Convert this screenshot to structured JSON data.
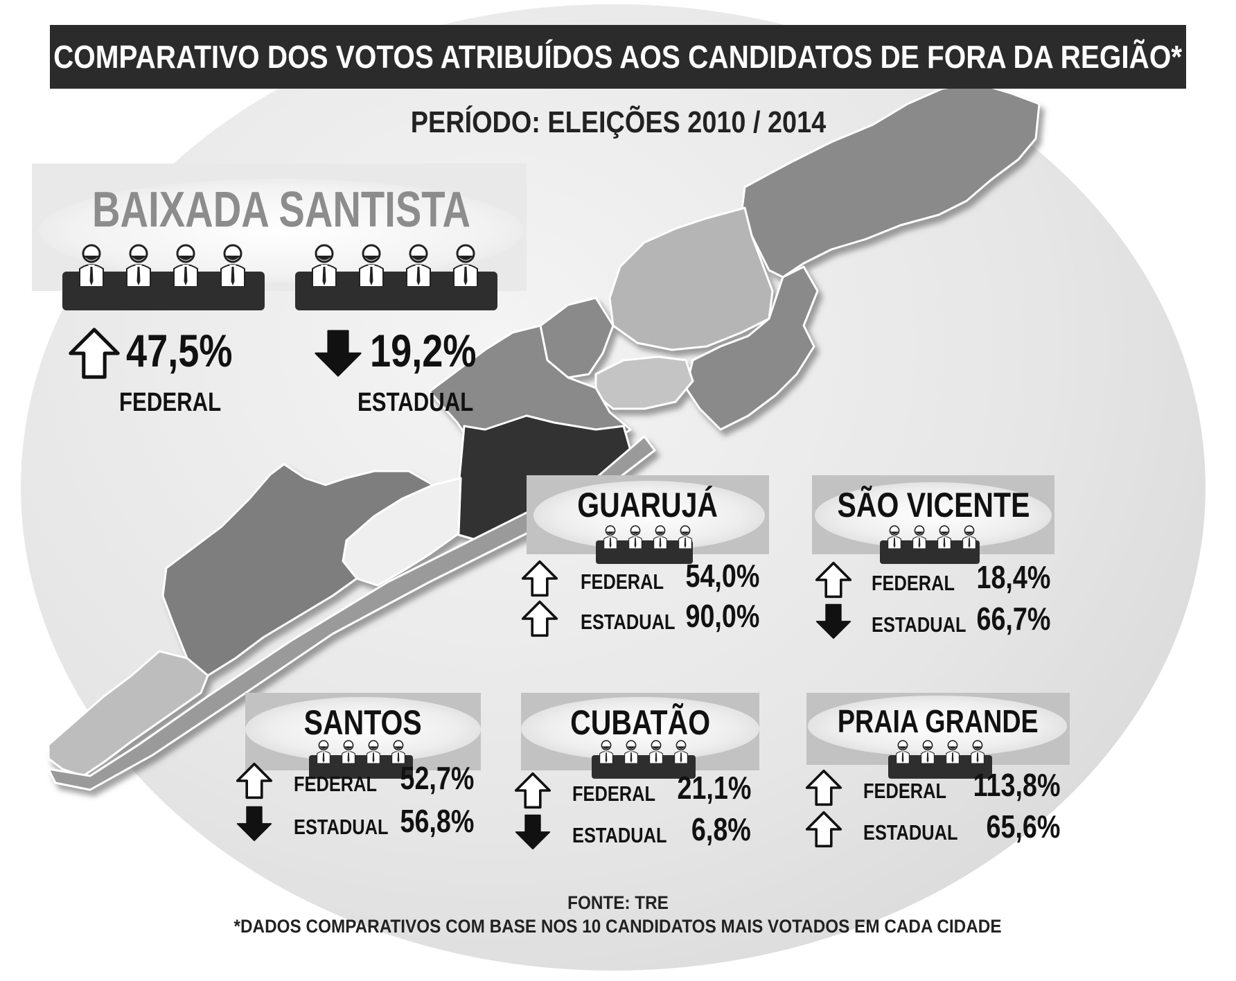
{
  "title": "COMPARATIVO DOS VOTOS ATRIBUÍDOS AOS CANDIDATOS DE FORA DA REGIÃO*",
  "subtitle": "PERÍODO: ELEIÇÕES 2010 / 2014",
  "region": {
    "name": "BAIXADA SANTISTA",
    "federal": {
      "label": "FEDERAL",
      "value": "47,5%",
      "trend": "up"
    },
    "estadual": {
      "label": "ESTADUAL",
      "value": "19,2%",
      "trend": "down"
    }
  },
  "cities": [
    {
      "name": "GUARUJÁ",
      "federal": {
        "label": "FEDERAL",
        "value": "54,0%",
        "trend": "up"
      },
      "estadual": {
        "label": "ESTADUAL",
        "value": "90,0%",
        "trend": "up"
      }
    },
    {
      "name": "SÃO VICENTE",
      "federal": {
        "label": "FEDERAL",
        "value": "18,4%",
        "trend": "up"
      },
      "estadual": {
        "label": "ESTADUAL",
        "value": "66,7%",
        "trend": "down"
      }
    },
    {
      "name": "SANTOS",
      "federal": {
        "label": "FEDERAL",
        "value": "52,7%",
        "trend": "up"
      },
      "estadual": {
        "label": "ESTADUAL",
        "value": "56,8%",
        "trend": "down"
      }
    },
    {
      "name": "CUBATÃO",
      "federal": {
        "label": "FEDERAL",
        "value": "21,1%",
        "trend": "up"
      },
      "estadual": {
        "label": "ESTADUAL",
        "value": "6,8%",
        "trend": "down"
      }
    },
    {
      "name": "PRAIA GRANDE",
      "federal": {
        "label": "FEDERAL",
        "value": "113,8%",
        "trend": "up"
      },
      "estadual": {
        "label": "ESTADUAL",
        "value": "65,6%",
        "trend": "up"
      }
    }
  ],
  "source": "FONTE: TRE",
  "footnote": "*DADOS COMPARATIVOS COM BASE NOS 10 CANDIDATOS MAIS VOTADOS EM CADA CIDADE",
  "icons": {
    "up": "arrow-up-outline-icon",
    "down": "arrow-down-filled-icon",
    "candidate": "candidate-person-icon"
  },
  "colors": {
    "title_bg": "#2b2b2b",
    "dark": "#2e2e2e",
    "region_title": "#8c8c8c"
  }
}
